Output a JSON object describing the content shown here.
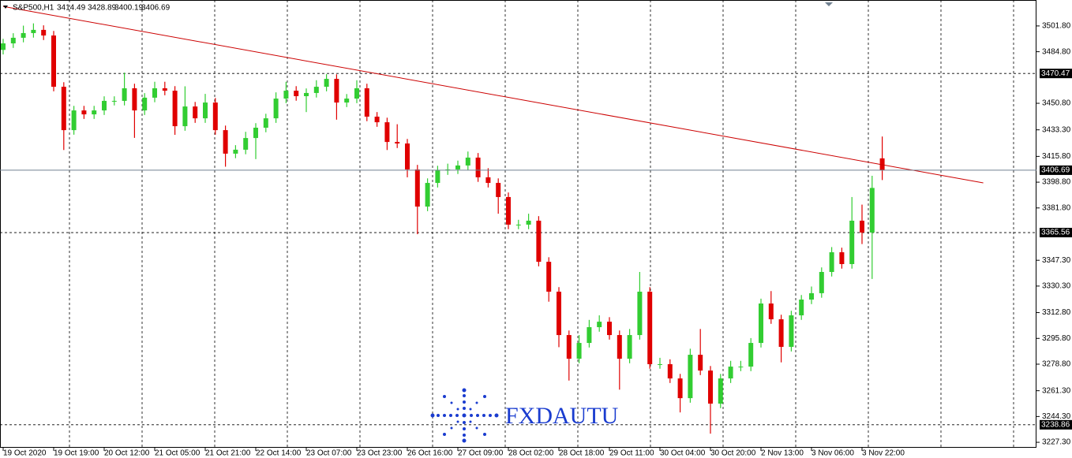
{
  "chart_data": {
    "type": "candlestick",
    "symbol": "S&P500,H1",
    "watermark": "FXDAUTU",
    "categories": [
      "19 Oct 2020",
      null,
      null,
      null,
      null,
      "19 Oct 19:00",
      null,
      null,
      null,
      null,
      "20 Oct 12:00",
      null,
      null,
      null,
      null,
      "21 Oct 05:00",
      null,
      null,
      null,
      null,
      "21 Oct 21:00",
      null,
      null,
      null,
      null,
      "22 Oct 14:00",
      null,
      null,
      null,
      null,
      "23 Oct 07:00",
      null,
      null,
      null,
      null,
      "23 Oct 23:00",
      null,
      null,
      null,
      null,
      "26 Oct 16:00",
      null,
      null,
      null,
      null,
      "27 Oct 09:00",
      null,
      null,
      null,
      null,
      "28 Oct 02:00",
      null,
      null,
      null,
      null,
      "28 Oct 18:00",
      null,
      null,
      null,
      null,
      "29 Oct 11:00",
      null,
      null,
      null,
      null,
      "30 Oct 04:00",
      null,
      null,
      null,
      null,
      "30 Oct 20:00",
      null,
      null,
      null,
      null,
      "2 Nov 13:00",
      null,
      null,
      null,
      null,
      "3 Nov 06:00",
      null,
      null,
      null,
      null,
      "3 Nov 22:00",
      null,
      null
    ],
    "open": [
      3486.0,
      3490.3,
      3494.0,
      3497.1,
      3499.2,
      3495.5,
      3461.7,
      3433.1,
      3446.1,
      3443.5,
      3446.1,
      3452.4,
      3452.4,
      3460.7,
      3446.1,
      3454.5,
      3460.7,
      3459.1,
      3435.7,
      3448.7,
      3440.9,
      3451.3,
      3433.1,
      3417.6,
      3420.2,
      3427.9,
      3434.7,
      3440.9,
      3453.9,
      3459.1,
      3455.5,
      3457.6,
      3461.7,
      3466.9,
      3451.3,
      3453.9,
      3460.7,
      3442.0,
      3438.3,
      3425.3,
      3424.3,
      3407.2,
      3382.7,
      3398.3,
      3406.6,
      3407.2,
      3409.8,
      3415.0,
      3402.0,
      3398.3,
      3389.0,
      3370.8,
      3370.8,
      3373.4,
      3346.3,
      3326.6,
      3298.0,
      3282.4,
      3292.8,
      3303.2,
      3306.8,
      3298.0,
      3282.4,
      3298.0,
      3326.6,
      3278.8,
      3278.8,
      3269.4,
      3256.4,
      3285.0,
      3274.6,
      3252.8,
      3269.4,
      3277.2,
      3277.2,
      3292.8,
      3318.8,
      3308.4,
      3290.2,
      3311.0,
      3321.4,
      3325.6,
      3339.6,
      3352.6,
      3344.8,
      3373.4,
      3365.6,
      3414.49
    ],
    "high": [
      3493.3,
      3497.0,
      3502.0,
      3503.5,
      3502.2,
      3498.5,
      3464.7,
      3449.1,
      3449.1,
      3449.1,
      3455.4,
      3455.4,
      3471.0,
      3463.7,
      3457.5,
      3465.0,
      3465.0,
      3462.1,
      3462.0,
      3451.7,
      3457.0,
      3454.3,
      3436.1,
      3423.2,
      3432.0,
      3437.7,
      3443.9,
      3458.0,
      3465.0,
      3462.1,
      3460.6,
      3466.0,
      3470.0,
      3469.9,
      3456.9,
      3466.0,
      3463.7,
      3445.0,
      3441.3,
      3437.0,
      3427.3,
      3410.2,
      3401.3,
      3409.6,
      3411.0,
      3413.0,
      3419.0,
      3418.0,
      3408.0,
      3401.3,
      3392.0,
      3374.0,
      3378.0,
      3376.4,
      3349.3,
      3329.6,
      3301.0,
      3298.0,
      3308.0,
      3311.0,
      3309.8,
      3301.0,
      3302.0,
      3339.6,
      3329.6,
      3283.0,
      3282.0,
      3272.4,
      3289.0,
      3302.0,
      3277.6,
      3272.4,
      3281.0,
      3281.0,
      3296.0,
      3322.0,
      3327.0,
      3311.4,
      3314.0,
      3324.4,
      3330.0,
      3342.6,
      3356.0,
      3355.6,
      3389.0,
      3384.0,
      3403.0,
      3428.89
    ],
    "low": [
      3483.0,
      3487.3,
      3491.0,
      3494.1,
      3492.5,
      3458.7,
      3420.0,
      3430.1,
      3440.5,
      3440.5,
      3443.1,
      3449.4,
      3449.4,
      3428.0,
      3443.1,
      3451.5,
      3456.1,
      3430.0,
      3432.7,
      3437.9,
      3437.9,
      3430.1,
      3409.0,
      3414.6,
      3417.2,
      3414.0,
      3431.7,
      3437.9,
      3450.9,
      3452.5,
      3445.0,
      3454.6,
      3458.7,
      3440.0,
      3448.3,
      3450.9,
      3439.0,
      3435.3,
      3420.0,
      3421.3,
      3402.0,
      3364.5,
      3379.7,
      3395.3,
      3403.6,
      3404.2,
      3406.8,
      3399.0,
      3395.3,
      3378.0,
      3367.8,
      3367.8,
      3367.8,
      3343.3,
      3320.0,
      3290.0,
      3268.0,
      3279.4,
      3289.8,
      3300.2,
      3295.0,
      3262.0,
      3279.4,
      3295.0,
      3275.8,
      3275.8,
      3266.4,
      3247.0,
      3253.4,
      3271.6,
      3233.0,
      3249.8,
      3266.4,
      3274.2,
      3274.2,
      3289.8,
      3305.4,
      3280.0,
      3287.2,
      3308.0,
      3318.4,
      3322.6,
      3336.6,
      3341.8,
      3341.8,
      3358.0,
      3335.0,
      3400.19
    ],
    "close": [
      3490.3,
      3494.0,
      3497.1,
      3499.2,
      3495.5,
      3461.7,
      3433.1,
      3446.1,
      3443.5,
      3446.1,
      3452.4,
      3452.4,
      3460.7,
      3446.1,
      3454.5,
      3460.7,
      3459.1,
      3435.7,
      3448.7,
      3440.9,
      3451.3,
      3433.1,
      3417.6,
      3420.2,
      3427.9,
      3434.7,
      3440.9,
      3453.9,
      3459.1,
      3455.5,
      3457.6,
      3461.7,
      3466.9,
      3451.3,
      3453.9,
      3460.7,
      3442.0,
      3438.3,
      3425.3,
      3424.3,
      3407.2,
      3382.7,
      3398.3,
      3406.6,
      3407.2,
      3409.8,
      3415.0,
      3402.0,
      3398.3,
      3389.0,
      3370.8,
      3370.8,
      3373.4,
      3346.3,
      3326.6,
      3298.0,
      3282.4,
      3292.8,
      3303.2,
      3306.8,
      3298.0,
      3282.4,
      3298.0,
      3326.6,
      3278.8,
      3278.8,
      3269.4,
      3256.4,
      3285.0,
      3274.6,
      3252.8,
      3269.4,
      3277.2,
      3277.2,
      3292.8,
      3318.8,
      3308.4,
      3290.2,
      3311.0,
      3321.4,
      3325.6,
      3339.6,
      3352.6,
      3344.8,
      3373.4,
      3365.6,
      3395.0,
      3406.69
    ],
    "up_color": "#32cd32",
    "down_color": "#e00000",
    "ylim": [
      3223.7,
      3518.9
    ],
    "yticks": [
      {
        "value": 3501.8,
        "label": "3501.80"
      },
      {
        "value": 3484.8,
        "label": "3484.80"
      },
      {
        "value": 3450.8,
        "label": "3450.80"
      },
      {
        "value": 3433.3,
        "label": "3433.30"
      },
      {
        "value": 3415.8,
        "label": "3415.80"
      },
      {
        "value": 3398.8,
        "label": "3398.80"
      },
      {
        "value": 3381.8,
        "label": "3381.80"
      },
      {
        "value": 3347.3,
        "label": "3347.30"
      },
      {
        "value": 3330.3,
        "label": "3330.30"
      },
      {
        "value": 3312.8,
        "label": "3312.80"
      },
      {
        "value": 3295.8,
        "label": "3295.80"
      },
      {
        "value": 3278.8,
        "label": "3278.80"
      },
      {
        "value": 3261.3,
        "label": "3261.30"
      },
      {
        "value": 3244.3,
        "label": "3244.30"
      },
      {
        "value": 3227.3,
        "label": "3227.30"
      }
    ],
    "levels": [
      3470.47,
      3365.56,
      3238.86
    ],
    "price_line_color": "#708090",
    "trendline": {
      "x": [
        0,
        97
      ],
      "y": [
        3514.7,
        3398.3
      ],
      "color": "#cc0000"
    }
  }
}
